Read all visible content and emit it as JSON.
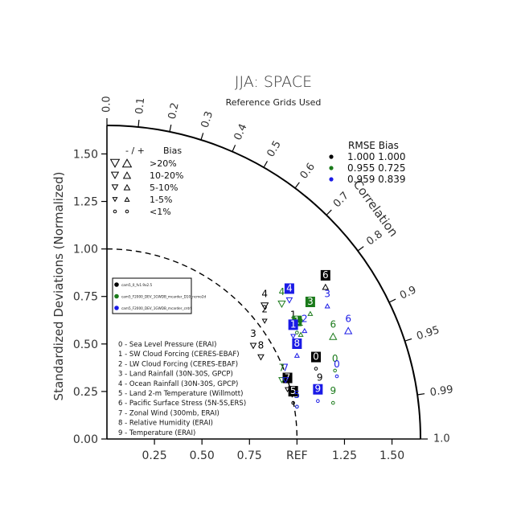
{
  "chart_data": {
    "type": "taylor-diagram",
    "title": "JJA: SPACE",
    "subtitle": "Reference Grids Used",
    "ylabel": "Standardized Deviations (Normalized)",
    "correlation_label": "Correlation",
    "std_range": [
      0,
      1.65
    ],
    "x_ticks": [
      "0.25",
      "0.50",
      "0.75",
      "REF",
      "1.25",
      "1.50"
    ],
    "x_tick_values": [
      0.25,
      0.5,
      0.75,
      1.0,
      1.25,
      1.5
    ],
    "y_ticks": [
      "0.00",
      "0.25",
      "0.50",
      "0.75",
      "1.00",
      "1.25",
      "1.50"
    ],
    "y_tick_values": [
      0,
      0.25,
      0.5,
      0.75,
      1.0,
      1.25,
      1.5
    ],
    "corr_ticks": [
      {
        "label": "0.0",
        "value": 0.0
      },
      {
        "label": "0.1",
        "value": 0.1
      },
      {
        "label": "0.2",
        "value": 0.2
      },
      {
        "label": "0.3",
        "value": 0.3
      },
      {
        "label": "0.4",
        "value": 0.4
      },
      {
        "label": "0.5",
        "value": 0.5
      },
      {
        "label": "0.6",
        "value": 0.6
      },
      {
        "label": "0.7",
        "value": 0.7
      },
      {
        "label": "0.8",
        "value": 0.8
      },
      {
        "label": "0.9",
        "value": 0.9
      },
      {
        "label": "0.95",
        "value": 0.95
      },
      {
        "label": "0.99",
        "value": 0.99
      },
      {
        "label": "1.0",
        "value": 1.0
      }
    ],
    "ref_arc_radius": 1.0,
    "bias_legend": {
      "header_sign": "- / +",
      "header_bias": "Bias",
      "rows": [
        {
          "label": ">20%",
          "marker": "triangle",
          "size": 10
        },
        {
          "label": "10-20%",
          "marker": "triangle",
          "size": 8
        },
        {
          "label": "5-10%",
          "marker": "triangle",
          "size": 6.5
        },
        {
          "label": "1-5%",
          "marker": "triangle",
          "size": 5
        },
        {
          "label": "<1%",
          "marker": "circle",
          "size": 4
        }
      ]
    },
    "rmse_legend": {
      "header": "RMSE  Bias",
      "rows": [
        {
          "color": "#000000",
          "rmse": "1.000",
          "bias": "1.000"
        },
        {
          "color": "#1a7a1a",
          "rmse": "0.955",
          "bias": "0.725"
        },
        {
          "color": "#1a1ae6",
          "rmse": "0.959",
          "bias": "0.839"
        }
      ]
    },
    "case_legend": [
      {
        "color": "#000000",
        "label": "cam5_0_fv1.9x2.5"
      },
      {
        "color": "#1a7a1a",
        "label": "cam5_F2000_DEV_1GWDB_mcarder_D10_ncmo2d"
      },
      {
        "color": "#1a1ae6",
        "label": "cam5_F2000_DEV_1GWDB_mcarder_cntrl"
      }
    ],
    "variables": [
      "0 - Sea Level Pressure (ERAI)",
      "1 - SW Cloud Forcing (CERES-EBAF)",
      "2 - LW Cloud Forcing (CERES-EBAF)",
      "3 - Land Rainfall (30N-30S, GPCP)",
      "4 - Ocean Rainfall (30N-30S, GPCP)",
      "5 - Land 2-m Temperature (Willmott)",
      "6 - Pacific Surface Stress (5N-5S,ERS)",
      "7 - Zonal Wind (300mb, ERAI)",
      "8 - Relative Humidity (ERAI)",
      "9 - Temperature (ERAI)"
    ],
    "series": [
      {
        "name": "cam5_0_fv1.9x2.5",
        "color": "#000000",
        "points": [
          {
            "id": "0",
            "x": 1.1,
            "y": 0.37,
            "marker": "circle",
            "size": 4,
            "box": true
          },
          {
            "id": "1",
            "x": 0.98,
            "y": 0.59,
            "marker": "triangle",
            "size": 5,
            "box": false
          },
          {
            "id": "2",
            "x": 0.83,
            "y": 0.62,
            "marker": "triangle",
            "size": 5,
            "box": false
          },
          {
            "id": "3",
            "x": 0.77,
            "y": 0.49,
            "marker": "triangle",
            "size": 6.5,
            "box": false
          },
          {
            "id": "4",
            "x": 0.83,
            "y": 0.7,
            "marker": "triangle",
            "size": 8,
            "box": false
          },
          {
            "id": "5",
            "x": 0.98,
            "y": 0.19,
            "marker": "circle",
            "size": 4,
            "box": true
          },
          {
            "id": "6",
            "x": 1.15,
            "y": 0.8,
            "marker": "triangle",
            "size": 6.5,
            "box": true
          },
          {
            "id": "7",
            "x": 0.95,
            "y": 0.26,
            "marker": "triangle",
            "size": 5,
            "box": true
          },
          {
            "id": "8",
            "x": 0.81,
            "y": 0.43,
            "marker": "triangle",
            "size": 6.5,
            "box": false
          },
          {
            "id": "9",
            "x": 1.12,
            "y": 0.26,
            "marker": "circle",
            "size": 4,
            "box": false
          }
        ]
      },
      {
        "name": "cam5_F2000_DEV_1GWDB_mcarder_D10_ncmo2d",
        "color": "#1a7a1a",
        "points": [
          {
            "id": "0",
            "x": 1.2,
            "y": 0.36,
            "marker": "circle",
            "size": 4,
            "box": false
          },
          {
            "id": "1",
            "x": 1.0,
            "y": 0.56,
            "marker": "circle",
            "size": 4,
            "box": true
          },
          {
            "id": "2",
            "x": 1.02,
            "y": 0.55,
            "marker": "triangle",
            "size": 5,
            "box": false
          },
          {
            "id": "3",
            "x": 1.07,
            "y": 0.66,
            "marker": "triangle",
            "size": 5,
            "box": true
          },
          {
            "id": "4",
            "x": 0.92,
            "y": 0.71,
            "marker": "triangle",
            "size": 8,
            "box": false
          },
          {
            "id": "5",
            "x": 1.0,
            "y": 0.17,
            "marker": "circle",
            "size": 4,
            "box": false
          },
          {
            "id": "6",
            "x": 1.19,
            "y": 0.54,
            "marker": "triangle",
            "size": 8,
            "box": false
          },
          {
            "id": "7",
            "x": 0.92,
            "y": 0.31,
            "marker": "triangle",
            "size": 6.5,
            "box": false
          },
          {
            "id": "9",
            "x": 1.19,
            "y": 0.19,
            "marker": "circle",
            "size": 4,
            "box": false
          }
        ]
      },
      {
        "name": "cam5_F2000_DEV_1GWDB_mcarder_cntrl",
        "color": "#1a1ae6",
        "points": [
          {
            "id": "0",
            "x": 1.21,
            "y": 0.33,
            "marker": "circle",
            "size": 4,
            "box": false
          },
          {
            "id": "1",
            "x": 0.98,
            "y": 0.54,
            "marker": "triangle",
            "size": 5,
            "box": true
          },
          {
            "id": "2",
            "x": 1.04,
            "y": 0.57,
            "marker": "triangle",
            "size": 5,
            "box": false
          },
          {
            "id": "3",
            "x": 1.16,
            "y": 0.7,
            "marker": "triangle",
            "size": 5,
            "box": false
          },
          {
            "id": "4",
            "x": 0.96,
            "y": 0.73,
            "marker": "triangle",
            "size": 6.5,
            "box": true
          },
          {
            "id": "5",
            "x": 1.0,
            "y": 0.17,
            "marker": "circle",
            "size": 4,
            "box": false
          },
          {
            "id": "6",
            "x": 1.27,
            "y": 0.57,
            "marker": "triangle",
            "size": 8,
            "box": false
          },
          {
            "id": "7",
            "x": 0.94,
            "y": 0.31,
            "marker": "triangle",
            "size": 6.5,
            "box": false
          },
          {
            "id": "8",
            "x": 1.0,
            "y": 0.44,
            "marker": "triangle",
            "size": 5,
            "box": true
          },
          {
            "id": "9",
            "x": 1.11,
            "y": 0.2,
            "marker": "circle",
            "size": 4,
            "box": true
          }
        ]
      }
    ]
  }
}
